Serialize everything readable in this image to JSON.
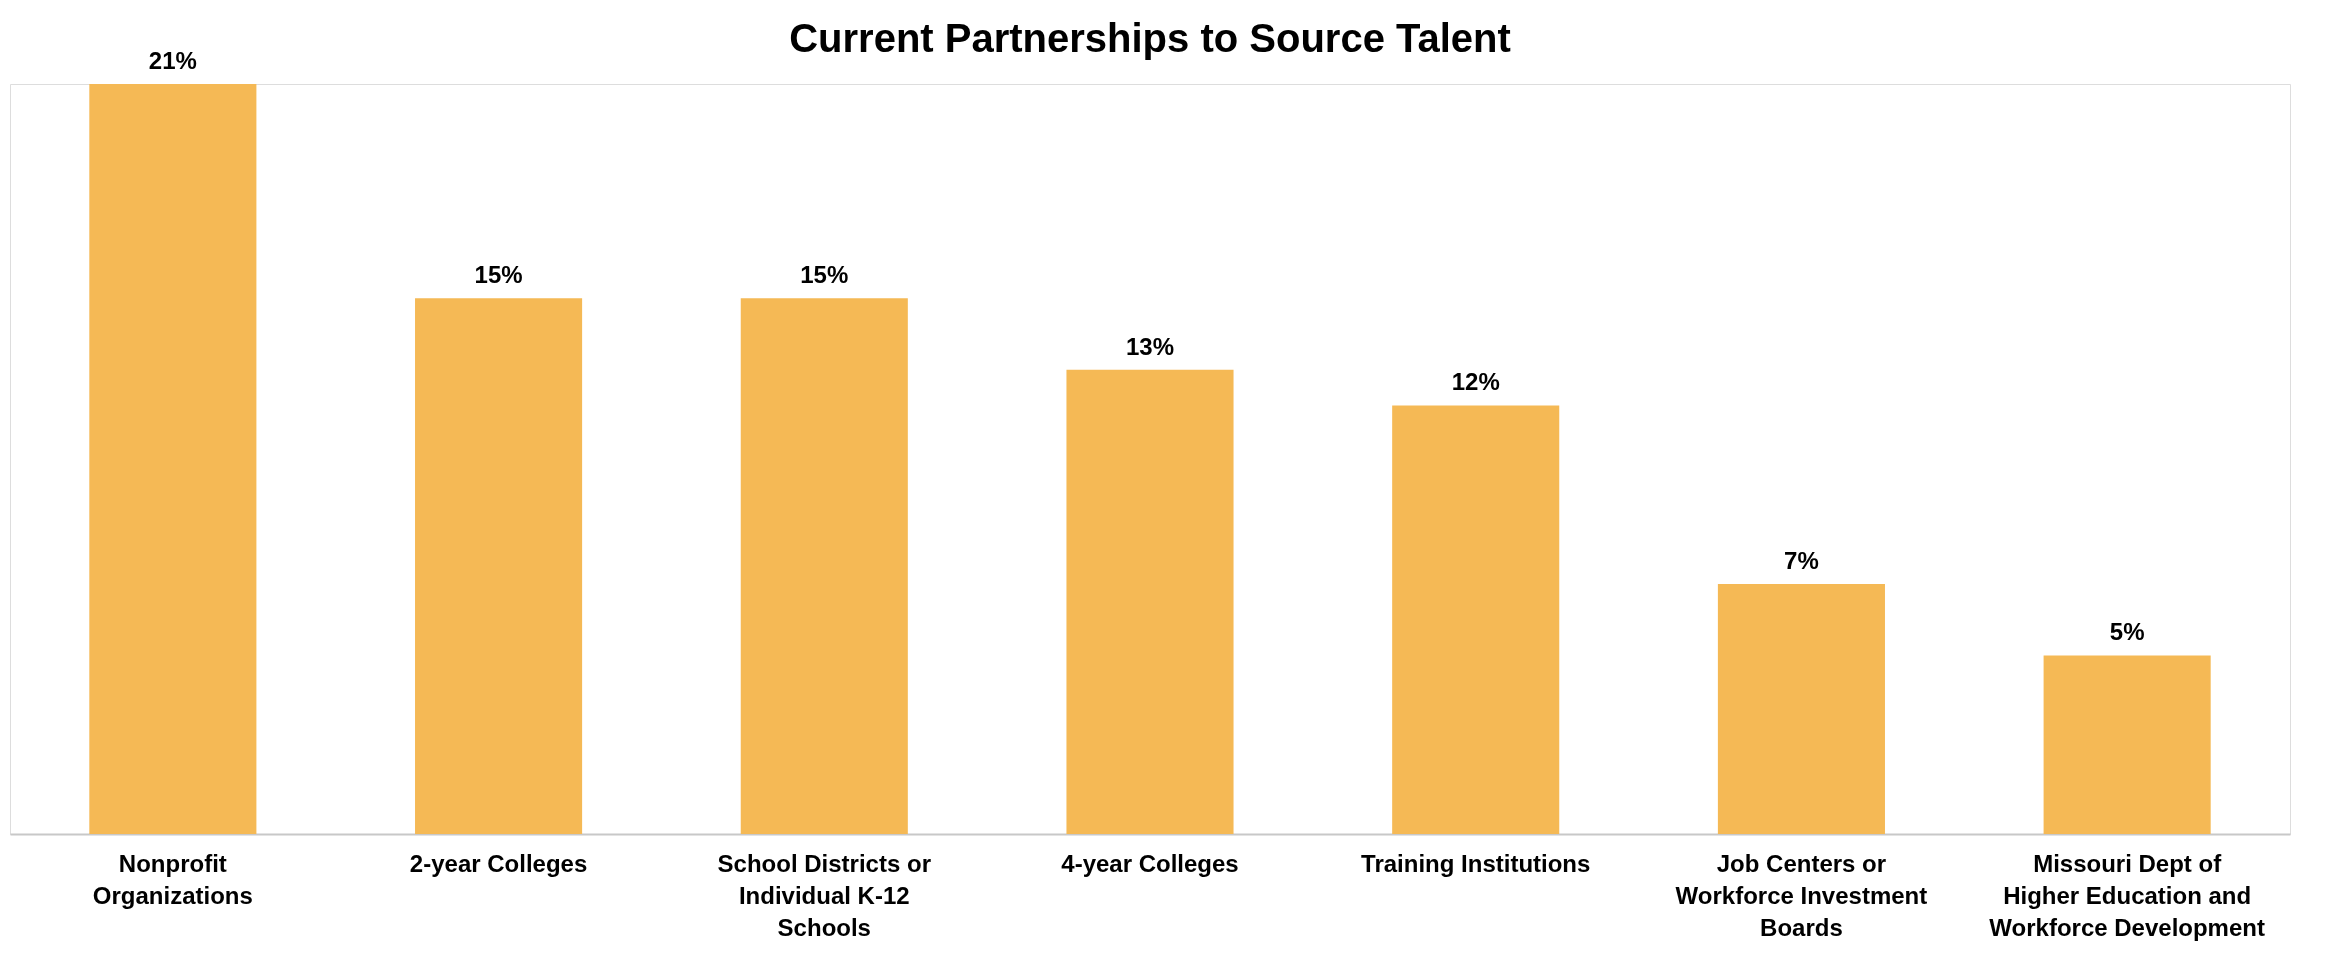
{
  "chart_data": {
    "type": "bar",
    "title": "Current Partnerships to Source Talent",
    "categories": [
      "Nonprofit Organizations",
      "2-year Colleges",
      "School Districts or Individual K-12 Schools",
      "4-year Colleges",
      "Training Institutions",
      "Job Centers or Workforce Investment Boards",
      "Missouri Dept of Higher Education and Workforce Development"
    ],
    "values": [
      21,
      15,
      15,
      13,
      12,
      7,
      5
    ],
    "value_labels": [
      "21%",
      "15%",
      "15%",
      "13%",
      "12%",
      "7%",
      "5%"
    ],
    "color": "#f5b955",
    "grid": false
  }
}
